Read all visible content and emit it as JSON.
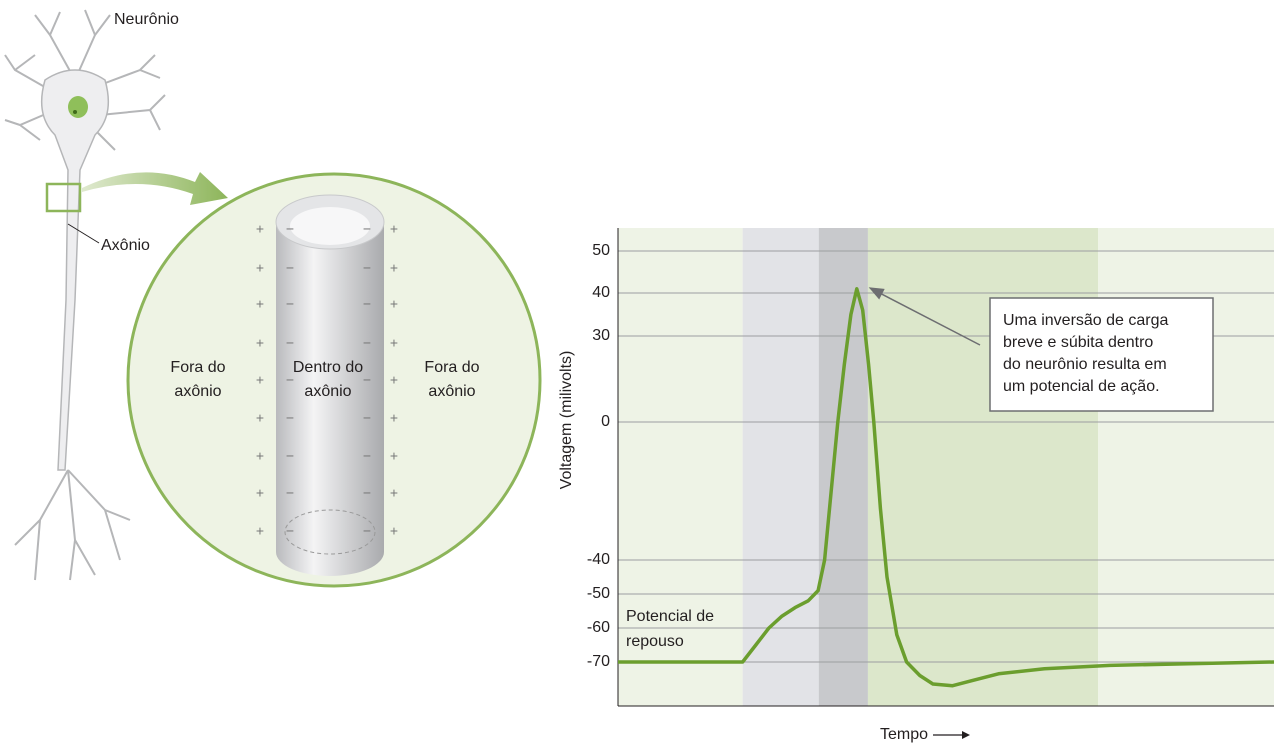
{
  "diagram": {
    "neuron_label": "Neurônio",
    "axon_label": "Axônio",
    "outside_left": [
      "Fora do",
      "axônio"
    ],
    "inside": [
      "Dentro do",
      "axônio"
    ],
    "outside_right": [
      "Fora do",
      "axônio"
    ],
    "outer_sign": "+",
    "inner_sign": "−"
  },
  "chart_data": {
    "type": "line",
    "ylabel": "Voltagem (milivolts)",
    "xlabel": "Tempo",
    "annotation": [
      "Uma inversão de carga",
      "breve e súbita dentro",
      "do neurônio resulta em",
      "um potencial de ação."
    ],
    "resting_label": [
      "Potencial de",
      "repouso"
    ],
    "ylim": [
      -83,
      55.5
    ],
    "yticks": [
      -70,
      -60,
      -50,
      -40,
      0,
      30,
      40,
      50
    ],
    "xlim": [
      0,
      100
    ],
    "grid": true,
    "shaded_regions": [
      {
        "x": [
          0,
          19
        ],
        "color": "#eef3e6"
      },
      {
        "x": [
          19,
          30.6
        ],
        "color": "#e2e3e7"
      },
      {
        "x": [
          30.6,
          38.1
        ],
        "color": "#c8c9cc"
      },
      {
        "x": [
          38.1,
          73.2
        ],
        "color": "#dce7cb"
      },
      {
        "x": [
          73.2,
          100
        ],
        "color": "#eef3e6"
      }
    ],
    "series": [
      {
        "color": "#6b9e2e",
        "x": [
          0,
          19,
          21,
          23,
          25,
          27,
          29,
          30.5,
          31.5,
          32.5,
          33.5,
          34.5,
          35.5,
          36.4,
          37.3,
          38.2,
          39,
          40,
          41,
          42.5,
          44,
          46,
          48,
          51,
          54,
          58,
          65,
          75,
          87,
          100
        ],
        "values": [
          -70,
          -70,
          -65,
          -60,
          -56.5,
          -54,
          -52,
          -49,
          -40,
          -20,
          0,
          20,
          35,
          41,
          36,
          20,
          0,
          -25,
          -45,
          -62,
          -70,
          -74,
          -76.5,
          -77,
          -75.5,
          -73.5,
          -72,
          -71,
          -70.5,
          -70
        ]
      }
    ]
  }
}
